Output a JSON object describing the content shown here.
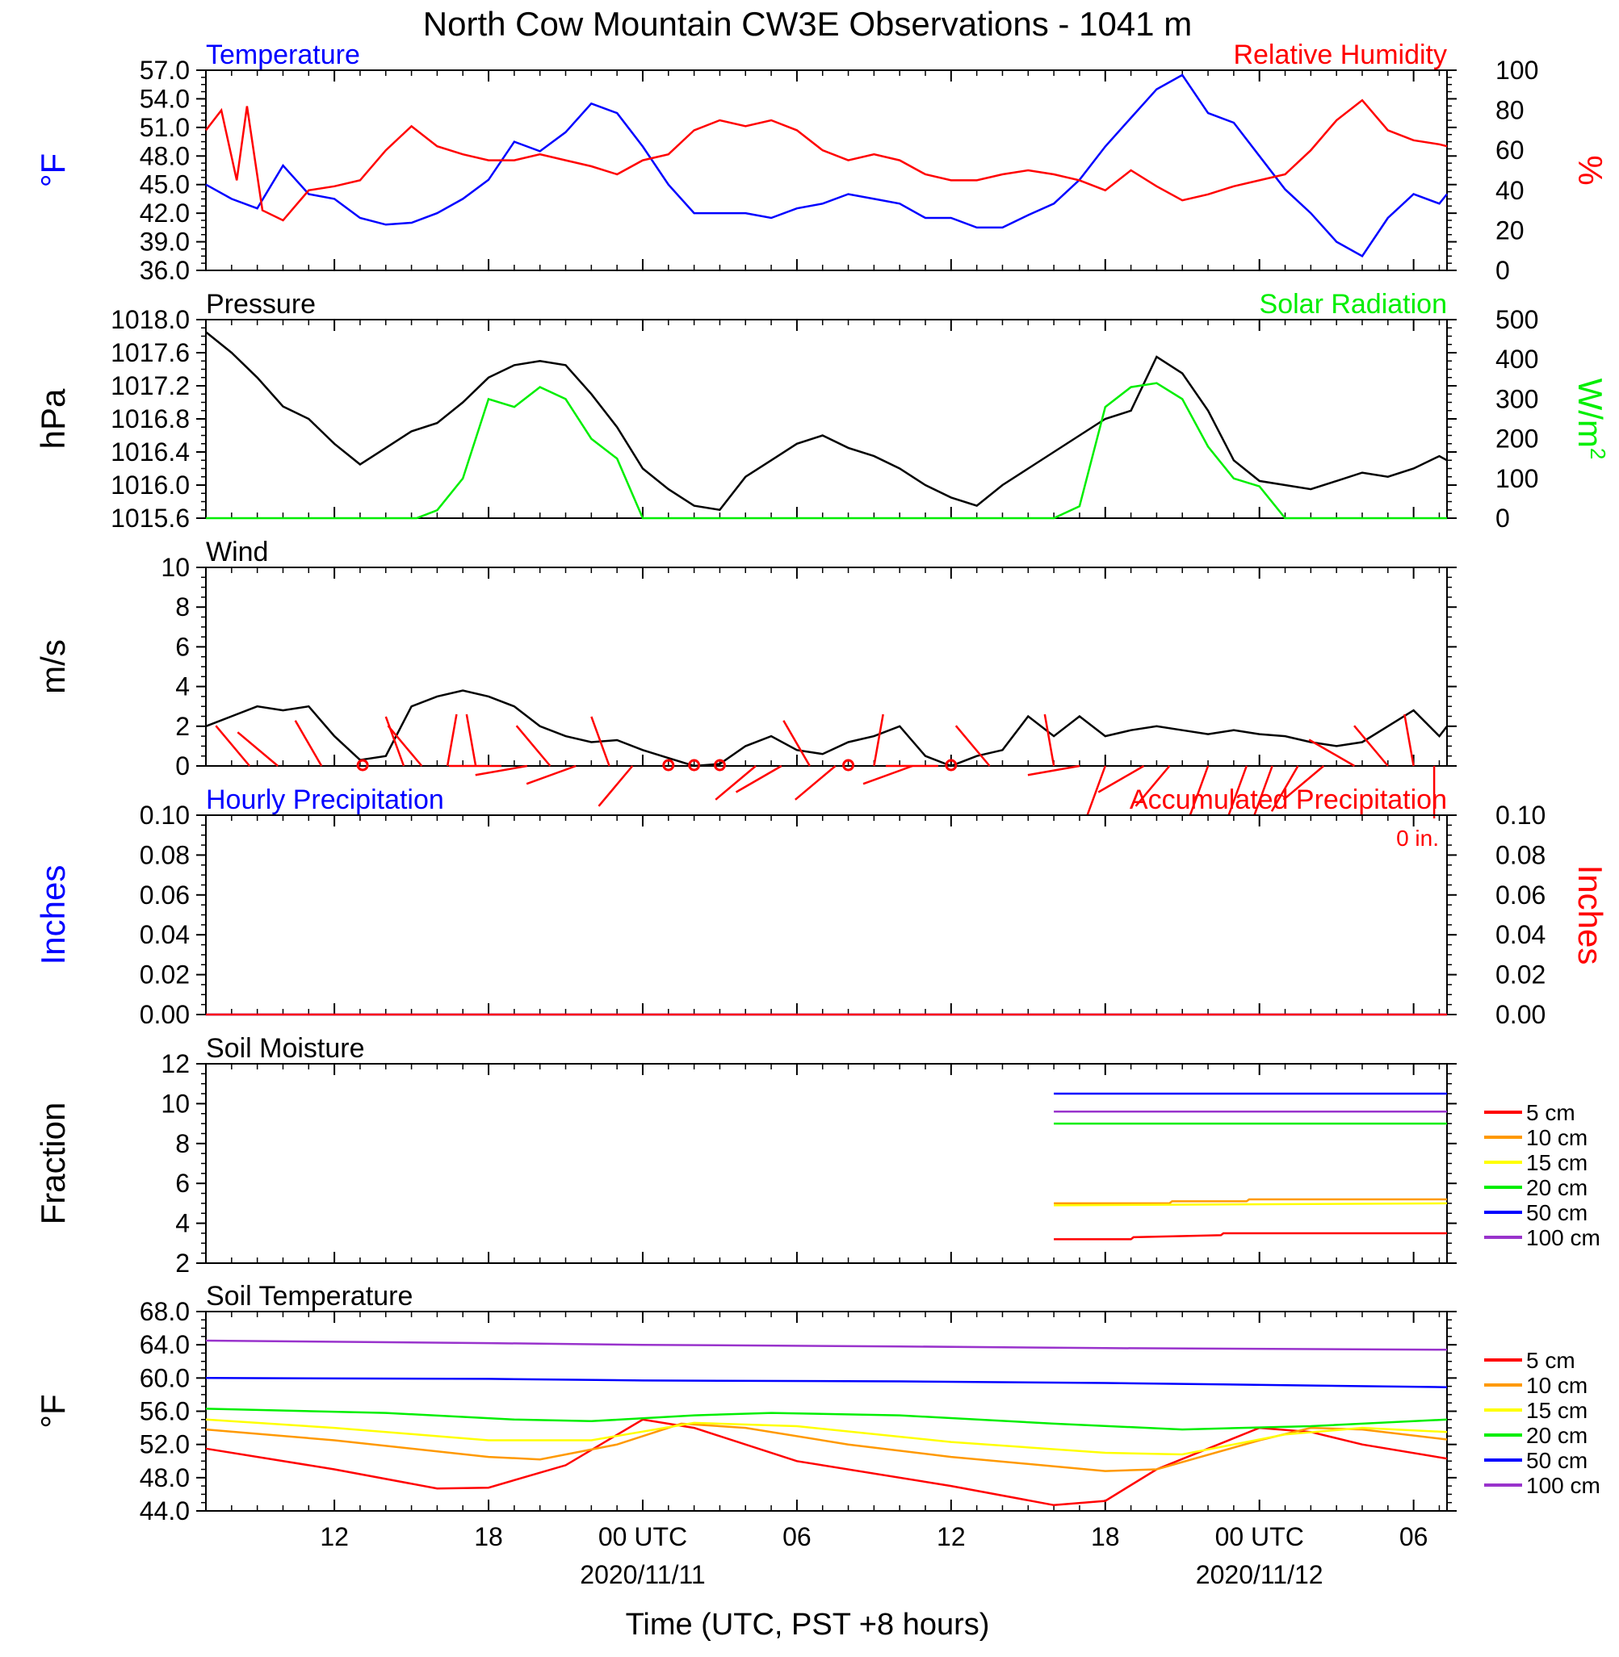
{
  "title": "North Cow Mountain CW3E Observations - 1041 m",
  "xlabel": "Time (UTC, PST +8 hours)",
  "time_axis": {
    "tick_labels": [
      "12",
      "18",
      "00 UTC",
      "06",
      "12",
      "18",
      "00 UTC",
      "06"
    ],
    "date_labels": [
      "2020/11/11",
      "2020/11/12"
    ],
    "range_hours": [
      -17,
      31.3
    ]
  },
  "colors": {
    "temperature": "#0000ff",
    "humidity": "#ff0000",
    "pressure": "#000000",
    "solar": "#00ee00",
    "wind": "#000000",
    "wind_barb": "#ff0000",
    "hourly_precip": "#0000ff",
    "accum_precip": "#ff0000",
    "soil": {
      "5 cm": "#ff0000",
      "10 cm": "#ff9900",
      "15 cm": "#ffff00",
      "20 cm": "#00ee00",
      "50 cm": "#0000ff",
      "100 cm": "#9933cc"
    }
  },
  "chart_data": [
    {
      "id": "temp_rh",
      "type": "line",
      "left_title": "Temperature",
      "right_title": "Relative Humidity",
      "left_axis_label": "°F",
      "right_axis_label": "%",
      "ylim_left": [
        36,
        57
      ],
      "yticks_left": [
        "57.0",
        "54.0",
        "51.0",
        "48.0",
        "45.0",
        "42.0",
        "39.0",
        "36.0"
      ],
      "ylim_right": [
        0,
        100
      ],
      "yticks_right": [
        "100",
        "80",
        "60",
        "40",
        "20",
        "0"
      ],
      "series": [
        {
          "name": "Temperature",
          "axis": "left",
          "x": [
            -17,
            -16,
            -15,
            -14,
            -13,
            -12,
            -11,
            -10,
            -9,
            -8,
            -7,
            -6,
            -5,
            -4,
            -3,
            -2,
            -1,
            0,
            1,
            2,
            3,
            4,
            5,
            6,
            7,
            8,
            9,
            10,
            11,
            12,
            13,
            14,
            15,
            16,
            17,
            18,
            19,
            20,
            21,
            22,
            23,
            24,
            25,
            26,
            27,
            28,
            29,
            30,
            31,
            31.3
          ],
          "y": [
            45.0,
            43.5,
            42.5,
            47.0,
            44.0,
            43.5,
            41.5,
            40.8,
            41.0,
            42.0,
            43.5,
            45.5,
            49.5,
            48.5,
            50.5,
            53.5,
            52.5,
            49.0,
            45.0,
            42.0,
            42.0,
            42.0,
            41.5,
            42.5,
            43.0,
            44.0,
            43.5,
            43.0,
            41.5,
            41.5,
            40.5,
            40.5,
            41.8,
            43.0,
            45.5,
            49.0,
            52.0,
            55.0,
            56.5,
            52.5,
            51.5,
            48.0,
            44.5,
            42.0,
            39.0,
            37.5,
            41.5,
            44.0,
            43.0,
            44.0
          ]
        },
        {
          "name": "Relative Humidity",
          "axis": "right",
          "x": [
            -17,
            -16.4,
            -15.8,
            -15.4,
            -14.8,
            -14,
            -13,
            -12,
            -11,
            -10,
            -9,
            -8,
            -7,
            -6,
            -5,
            -4,
            -3,
            -2,
            -1,
            0,
            1,
            2,
            3,
            4,
            5,
            6,
            7,
            8,
            9,
            10,
            11,
            12,
            13,
            14,
            15,
            16,
            17,
            18,
            19,
            20,
            21,
            22,
            23,
            24,
            25,
            26,
            27,
            28,
            29,
            30,
            31,
            31.3
          ],
          "y": [
            70,
            80,
            45,
            82,
            30,
            25,
            40,
            42,
            45,
            60,
            72,
            62,
            58,
            55,
            55,
            58,
            55,
            52,
            48,
            55,
            58,
            70,
            75,
            72,
            75,
            70,
            60,
            55,
            58,
            55,
            48,
            45,
            45,
            48,
            50,
            48,
            45,
            40,
            50,
            42,
            35,
            38,
            42,
            45,
            48,
            60,
            75,
            85,
            70,
            65,
            63,
            62
          ]
        }
      ]
    },
    {
      "id": "pressure_solar",
      "type": "line",
      "left_title": "Pressure",
      "right_title": "Solar Radiation",
      "left_axis_label": "hPa",
      "right_axis_label": "W/m",
      "right_axis_label_sup": "2",
      "ylim_left": [
        1015.6,
        1018.0
      ],
      "yticks_left": [
        "1018.0",
        "1017.6",
        "1017.2",
        "1016.8",
        "1016.4",
        "1016.0",
        "1015.6"
      ],
      "ylim_right": [
        0,
        500
      ],
      "yticks_right": [
        "500",
        "400",
        "300",
        "200",
        "100",
        "0"
      ],
      "series": [
        {
          "name": "Pressure",
          "axis": "left",
          "x": [
            -17,
            -16,
            -15,
            -14,
            -13,
            -12,
            -11,
            -10,
            -9,
            -8,
            -7,
            -6,
            -5,
            -4,
            -3,
            -2,
            -1,
            0,
            1,
            2,
            3,
            4,
            5,
            6,
            7,
            8,
            9,
            10,
            11,
            12,
            13,
            14,
            15,
            16,
            17,
            18,
            19,
            20,
            21,
            22,
            23,
            24,
            25,
            26,
            27,
            28,
            29,
            30,
            31,
            31.3
          ],
          "y": [
            1017.85,
            1017.6,
            1017.3,
            1016.95,
            1016.8,
            1016.5,
            1016.25,
            1016.45,
            1016.65,
            1016.75,
            1017.0,
            1017.3,
            1017.45,
            1017.5,
            1017.45,
            1017.1,
            1016.7,
            1016.2,
            1015.95,
            1015.75,
            1015.7,
            1016.1,
            1016.3,
            1016.5,
            1016.6,
            1016.45,
            1016.35,
            1016.2,
            1016.0,
            1015.85,
            1015.75,
            1016.0,
            1016.2,
            1016.4,
            1016.6,
            1016.8,
            1016.9,
            1017.55,
            1017.35,
            1016.9,
            1016.3,
            1016.05,
            1016.0,
            1015.95,
            1016.05,
            1016.15,
            1016.1,
            1016.2,
            1016.35,
            1016.3
          ]
        },
        {
          "name": "Solar Radiation",
          "axis": "right",
          "x": [
            -17,
            -8.8,
            -8,
            -7,
            -6,
            -5,
            -4,
            -3,
            -2,
            -1,
            0,
            1,
            2,
            3,
            4,
            5,
            6,
            7,
            8,
            9,
            10,
            11,
            12,
            13,
            14,
            15,
            16,
            17,
            18,
            19,
            20,
            21,
            22,
            23,
            24,
            25,
            31.3
          ],
          "y": [
            0,
            0,
            20,
            100,
            300,
            280,
            330,
            300,
            200,
            150,
            0,
            0,
            0,
            0,
            0,
            0,
            0,
            0,
            0,
            0,
            0,
            0,
            0,
            0,
            0,
            0,
            0,
            30,
            280,
            330,
            340,
            300,
            180,
            100,
            80,
            0,
            0
          ]
        }
      ]
    },
    {
      "id": "wind",
      "type": "line",
      "left_title": "Wind",
      "left_axis_label": "m/s",
      "ylim_left": [
        0,
        10
      ],
      "yticks_left": [
        "10",
        "8",
        "6",
        "4",
        "2",
        "0"
      ],
      "series": [
        {
          "name": "Wind",
          "axis": "left",
          "x": [
            -17,
            -16,
            -15,
            -14,
            -13,
            -12,
            -11,
            -10,
            -9,
            -8,
            -7,
            -6,
            -5,
            -4,
            -3,
            -2,
            -1,
            0,
            1,
            2,
            3,
            4,
            5,
            6,
            7,
            8,
            9,
            10,
            11,
            12,
            13,
            14,
            15,
            16,
            17,
            18,
            19,
            20,
            21,
            22,
            23,
            24,
            25,
            26,
            27,
            28,
            29,
            30,
            31,
            31.3
          ],
          "y": [
            2.0,
            2.5,
            3.0,
            2.8,
            3.0,
            1.5,
            0.3,
            0.5,
            3.0,
            3.5,
            3.8,
            3.5,
            3.0,
            2.0,
            1.5,
            1.2,
            1.3,
            0.8,
            0.4,
            0.0,
            0.1,
            1.0,
            1.5,
            0.8,
            0.6,
            1.2,
            1.5,
            2.0,
            0.5,
            0.0,
            0.5,
            0.8,
            2.5,
            1.5,
            2.5,
            1.5,
            1.8,
            2.0,
            1.8,
            1.6,
            1.8,
            1.6,
            1.5,
            1.2,
            1.0,
            1.2,
            2.0,
            2.8,
            1.5,
            2.0
          ]
        }
      ]
    },
    {
      "id": "precip",
      "type": "line",
      "left_title": "Hourly Precipitation",
      "right_title": "Accumulated Precipitation",
      "annotation": "0 in.",
      "left_axis_label": "Inches",
      "right_axis_label": "Inches",
      "ylim_left": [
        0,
        0.1
      ],
      "yticks_left": [
        "0.10",
        "0.08",
        "0.06",
        "0.04",
        "0.02",
        "0.00"
      ],
      "ylim_right": [
        0,
        0.1
      ],
      "yticks_right": [
        "0.10",
        "0.08",
        "0.06",
        "0.04",
        "0.02",
        "0.00"
      ],
      "series": [
        {
          "name": "Hourly Precipitation",
          "axis": "left",
          "x": [
            -17,
            31.3
          ],
          "y": [
            0,
            0
          ]
        },
        {
          "name": "Accumulated Precipitation",
          "axis": "right",
          "x": [
            -17,
            31.3
          ],
          "y": [
            0,
            0
          ]
        }
      ]
    },
    {
      "id": "soil_moisture",
      "type": "line",
      "left_title": "Soil Moisture",
      "left_axis_label": "Fraction",
      "ylim_left": [
        2,
        12
      ],
      "yticks_left": [
        "12",
        "10",
        "8",
        "6",
        "4",
        "2"
      ],
      "legend": [
        "5 cm",
        "10 cm",
        "15 cm",
        "20 cm",
        "50 cm",
        "100 cm"
      ],
      "series": [
        {
          "name": "5 cm",
          "x": [
            16,
            19,
            19.1,
            22.5,
            22.6,
            31.3
          ],
          "y": [
            3.2,
            3.2,
            3.3,
            3.4,
            3.5,
            3.5
          ]
        },
        {
          "name": "10 cm",
          "x": [
            16,
            20.5,
            20.6,
            23.5,
            23.6,
            31.3
          ],
          "y": [
            5.0,
            5.0,
            5.1,
            5.1,
            5.2,
            5.2
          ]
        },
        {
          "name": "15 cm",
          "x": [
            16,
            31.3
          ],
          "y": [
            4.9,
            5.0
          ]
        },
        {
          "name": "20 cm",
          "x": [
            16,
            31.3
          ],
          "y": [
            9.0,
            9.0
          ]
        },
        {
          "name": "50 cm",
          "x": [
            16,
            31.3
          ],
          "y": [
            10.5,
            10.5
          ]
        },
        {
          "name": "100 cm",
          "x": [
            16,
            31.3
          ],
          "y": [
            9.6,
            9.6
          ]
        }
      ]
    },
    {
      "id": "soil_temp",
      "type": "line",
      "left_title": "Soil Temperature",
      "left_axis_label": "°F",
      "ylim_left": [
        44,
        68
      ],
      "yticks_left": [
        "68.0",
        "64.0",
        "60.0",
        "56.0",
        "52.0",
        "48.0",
        "44.0"
      ],
      "legend": [
        "5 cm",
        "10 cm",
        "15 cm",
        "20 cm",
        "50 cm",
        "100 cm"
      ],
      "series": [
        {
          "name": "5 cm",
          "x": [
            -17,
            -12,
            -8,
            -6,
            -3,
            0,
            2,
            6,
            12,
            16,
            18,
            20,
            24,
            26,
            28,
            31.3
          ],
          "y": [
            51.5,
            49.0,
            46.7,
            46.8,
            49.5,
            55.0,
            54.0,
            50.0,
            47.0,
            44.7,
            45.2,
            49.0,
            54.0,
            53.5,
            52.0,
            50.3
          ]
        },
        {
          "name": "10 cm",
          "x": [
            -17,
            -12,
            -6,
            -4,
            -1,
            1.5,
            4,
            8,
            12,
            18,
            20,
            24,
            26,
            28,
            31.3
          ],
          "y": [
            53.8,
            52.5,
            50.5,
            50.2,
            52.0,
            54.5,
            54.0,
            52.0,
            50.5,
            48.8,
            49.0,
            52.5,
            54.0,
            53.8,
            52.6
          ]
        },
        {
          "name": "15 cm",
          "x": [
            -17,
            -12,
            -6,
            -2,
            2,
            6,
            12,
            18,
            21,
            25,
            28,
            31.3
          ],
          "y": [
            55.0,
            54.0,
            52.5,
            52.5,
            54.6,
            54.2,
            52.3,
            51.0,
            50.8,
            53.2,
            54.0,
            53.5
          ]
        },
        {
          "name": "20 cm",
          "x": [
            -17,
            -10,
            -5,
            -2,
            2,
            5,
            10,
            16,
            21,
            26,
            31.3
          ],
          "y": [
            56.3,
            55.8,
            55.0,
            54.8,
            55.5,
            55.8,
            55.5,
            54.5,
            53.8,
            54.2,
            55.0
          ]
        },
        {
          "name": "50 cm",
          "x": [
            -17,
            -6,
            0,
            10,
            18,
            31.3
          ],
          "y": [
            60.0,
            59.9,
            59.7,
            59.6,
            59.4,
            58.9
          ]
        },
        {
          "name": "100 cm",
          "x": [
            -17,
            -6,
            0,
            10,
            18,
            31.3
          ],
          "y": [
            64.5,
            64.2,
            64.0,
            63.8,
            63.6,
            63.4
          ]
        }
      ]
    }
  ],
  "wind_barbs": {
    "barbs": [
      {
        "x": -15.3,
        "dir": 320
      },
      {
        "x": -14.2,
        "dir": 310
      },
      {
        "x": -12.5,
        "dir": 330
      },
      {
        "x": -10.9,
        "dir": 0
      },
      {
        "x": -9.3,
        "dir": 340
      },
      {
        "x": -8.6,
        "dir": 320
      },
      {
        "x": -7.6,
        "dir": 10
      },
      {
        "x": -6.5,
        "dir": 350
      },
      {
        "x": -5.5,
        "dir": 270
      },
      {
        "x": -4.5,
        "dir": 260
      },
      {
        "x": -3.6,
        "dir": 320
      },
      {
        "x": -2.6,
        "dir": 250
      },
      {
        "x": -1.3,
        "dir": 340
      },
      {
        "x": -0.4,
        "dir": 220
      },
      {
        "x": 1.0,
        "dir": 0
      },
      {
        "x": 2.0,
        "dir": 0
      },
      {
        "x": 3.0,
        "dir": 0
      },
      {
        "x": 4.4,
        "dir": 230
      },
      {
        "x": 5.4,
        "dir": 240
      },
      {
        "x": 6.5,
        "dir": 330
      },
      {
        "x": 7.5,
        "dir": 230
      },
      {
        "x": 8.0,
        "dir": 0
      },
      {
        "x": 9.0,
        "dir": 10
      },
      {
        "x": 10.5,
        "dir": 250
      },
      {
        "x": 11.5,
        "dir": 270
      },
      {
        "x": 12.0,
        "dir": 0
      },
      {
        "x": 13.5,
        "dir": 320
      },
      {
        "x": 16.0,
        "dir": 350
      },
      {
        "x": 17.0,
        "dir": 260
      },
      {
        "x": 18.0,
        "dir": 200
      },
      {
        "x": 19.5,
        "dir": 240
      },
      {
        "x": 20.5,
        "dir": 220
      },
      {
        "x": 22.0,
        "dir": 200
      },
      {
        "x": 23.5,
        "dir": 200
      },
      {
        "x": 24.5,
        "dir": 200
      },
      {
        "x": 25.5,
        "dir": 210
      },
      {
        "x": 26.5,
        "dir": 230
      },
      {
        "x": 27.7,
        "dir": 300
      },
      {
        "x": 29.0,
        "dir": 320
      },
      {
        "x": 30.0,
        "dir": 350
      },
      {
        "x": 30.8,
        "dir": 180
      }
    ]
  }
}
